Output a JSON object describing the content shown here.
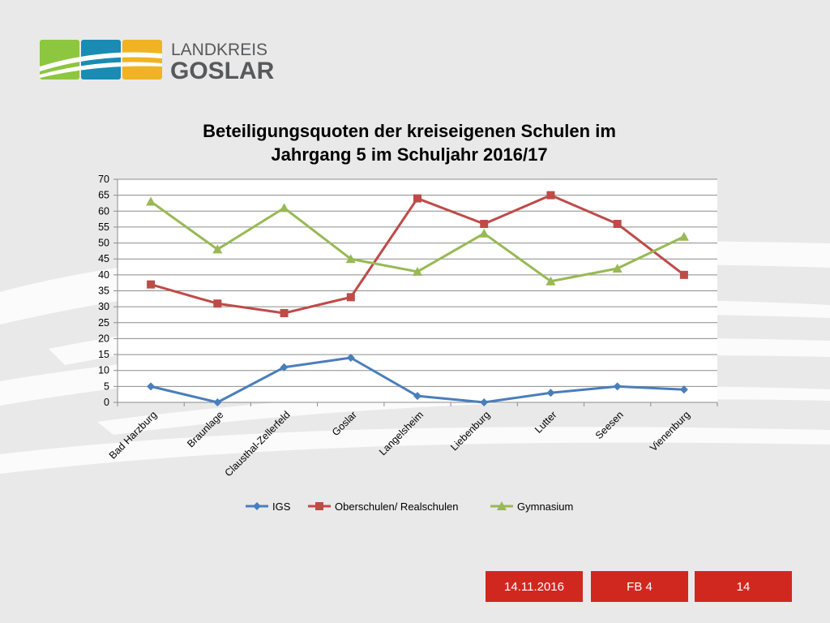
{
  "header": {
    "logo_line1": "LANDKREIS",
    "logo_line2": "GOSLAR",
    "logo_colors": [
      "#8dc63f",
      "#1a8bb3",
      "#f0b323"
    ]
  },
  "chart_data": {
    "type": "line",
    "title_line1": "Beteiligungsquoten der kreiseigenen Schulen im",
    "title_line2": "Jahrgang 5 im Schuljahr 2016/17",
    "categories": [
      "Bad Harzburg",
      "Braunlage",
      "Clausthal-Zellerfeld",
      "Goslar",
      "Langelsheim",
      "Liebenburg",
      "Lutter",
      "Seesen",
      "Vienenburg"
    ],
    "ylim": [
      0,
      70
    ],
    "yticks": [
      "0",
      "5",
      "10",
      "15",
      "20",
      "25",
      "30",
      "35",
      "40",
      "45",
      "50",
      "55",
      "60",
      "65",
      "70"
    ],
    "grid": true,
    "legend_position": "bottom",
    "series": [
      {
        "name": "IGS",
        "color": "#4a7ebb",
        "marker": "diamond",
        "values": [
          5,
          0,
          11,
          14,
          2,
          0,
          3,
          5,
          4
        ]
      },
      {
        "name": "Oberschulen/ Realschulen",
        "color": "#be4b48",
        "marker": "square",
        "values": [
          37,
          31,
          28,
          33,
          64,
          56,
          65,
          56,
          40
        ]
      },
      {
        "name": "Gymnasium",
        "color": "#98b954",
        "marker": "triangle",
        "values": [
          63,
          48,
          61,
          45,
          41,
          53,
          38,
          42,
          52
        ]
      }
    ]
  },
  "footer": {
    "date": "14.11.2016",
    "department": "FB 4",
    "page": "14"
  }
}
